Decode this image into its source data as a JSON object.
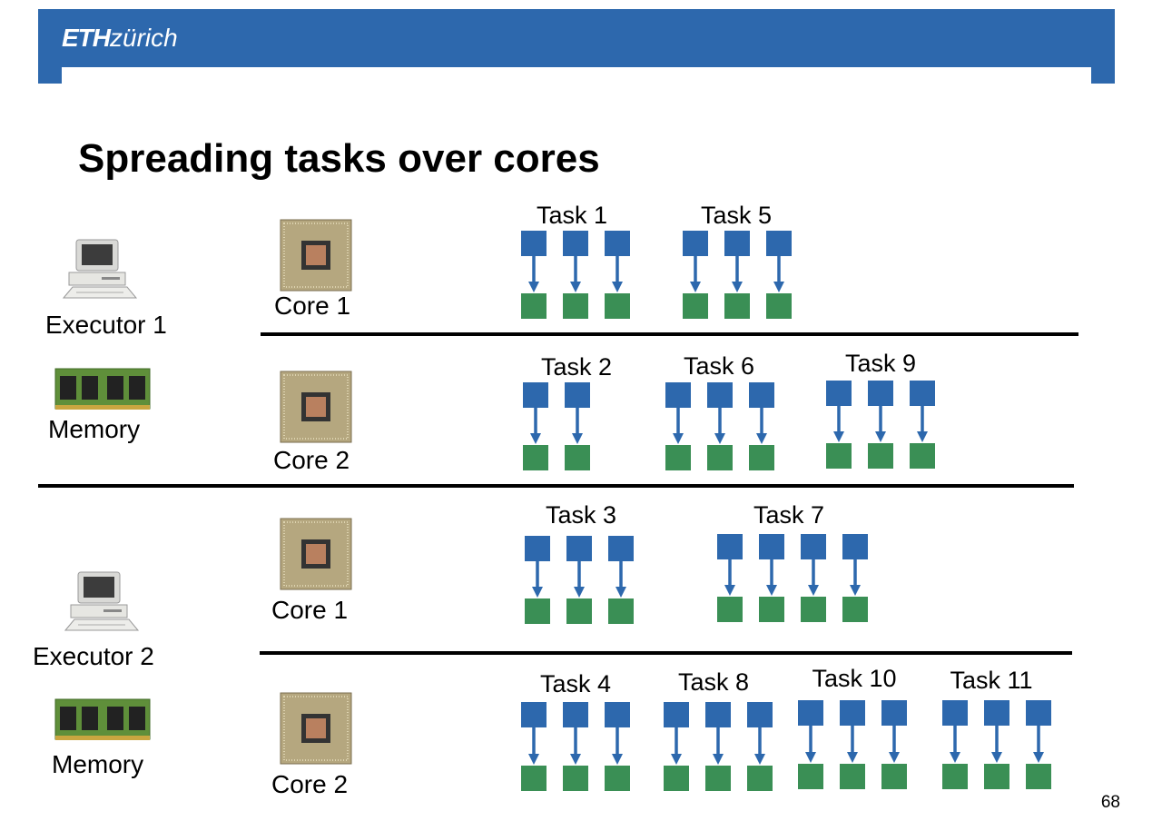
{
  "header": {
    "logo_bold": "ETH",
    "logo_light": "zürich",
    "color": "#2d68ad"
  },
  "slide": {
    "title": "Spreading tasks over cores",
    "page_number": "68"
  },
  "executors": [
    {
      "label": "Executor 1",
      "memory_label": "Memory",
      "cores": [
        {
          "label": "Core 1"
        },
        {
          "label": "Core 2"
        }
      ]
    },
    {
      "label": "Executor 2",
      "memory_label": "Memory",
      "cores": [
        {
          "label": "Core 1"
        },
        {
          "label": "Core 2"
        }
      ]
    }
  ],
  "tasks": [
    {
      "label": "Task 1",
      "partitions": 3
    },
    {
      "label": "Task 5",
      "partitions": 3
    },
    {
      "label": "Task 2",
      "partitions": 2
    },
    {
      "label": "Task 6",
      "partitions": 3
    },
    {
      "label": "Task 9",
      "partitions": 3
    },
    {
      "label": "Task 3",
      "partitions": 3
    },
    {
      "label": "Task 7",
      "partitions": 4
    },
    {
      "label": "Task 4",
      "partitions": 3
    },
    {
      "label": "Task 8",
      "partitions": 3
    },
    {
      "label": "Task 10",
      "partitions": 3
    },
    {
      "label": "Task 11",
      "partitions": 3
    }
  ],
  "colors": {
    "input_block": "#2d68ad",
    "output_block": "#3a8f55",
    "arrow": "#2d68ad"
  }
}
